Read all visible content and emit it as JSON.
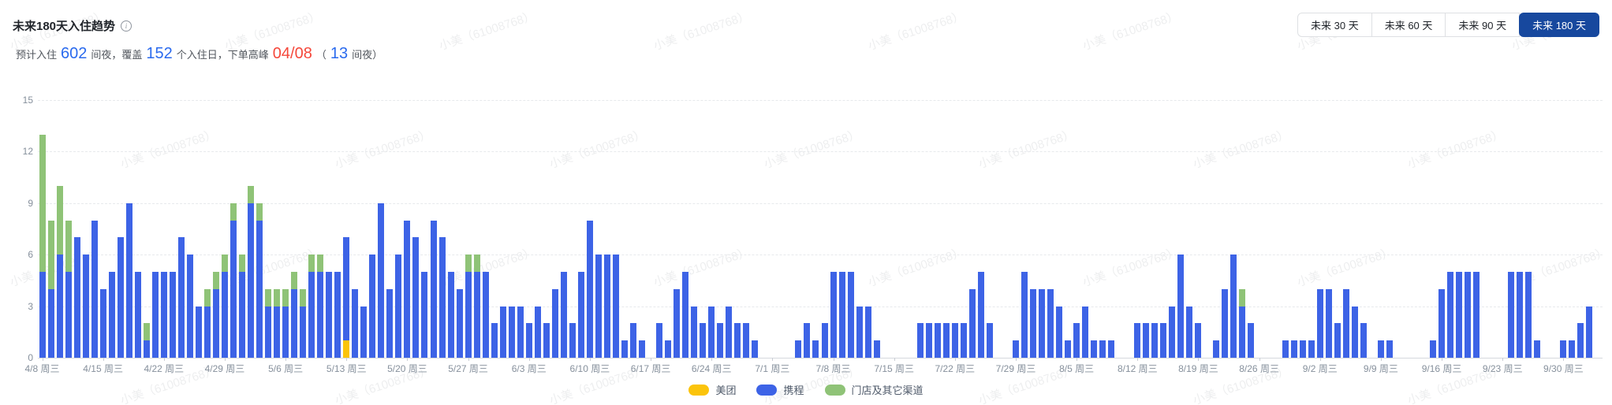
{
  "header": {
    "title": "未来180天入住趋势",
    "summary": {
      "prefix": "预计入住",
      "nights": "602",
      "mid1": "间夜，覆盖",
      "cover_days": "152",
      "mid2": "个入住日，下单高峰",
      "peak_date": "04/08",
      "paren_open": "（",
      "peak_nights": "13",
      "paren_close": "间夜）"
    },
    "range_tabs": [
      {
        "label": "未来 30 天",
        "active": false
      },
      {
        "label": "未来 60 天",
        "active": false
      },
      {
        "label": "未来 90 天",
        "active": false
      },
      {
        "label": "未来 180 天",
        "active": true
      }
    ]
  },
  "watermark": {
    "text": "小美（61008768）"
  },
  "colors": {
    "accent_blue": "#2a6aee",
    "alert_red": "#f5483b",
    "tab_active_bg": "#17489e",
    "meituan_yellow": "#fbc40b",
    "ctrip_blue": "#3d63e6",
    "other_green": "#8fc377",
    "axis_text": "#86909c",
    "grid_line": "#e7e9ec"
  },
  "chart_data": {
    "type": "bar",
    "stacked": true,
    "x_count": 180,
    "tick_every": 7,
    "tick_labels": [
      "4/8 周三",
      "4/15 周三",
      "4/22 周三",
      "4/29 周三",
      "5/6 周三",
      "5/13 周三",
      "5/20 周三",
      "5/27 周三",
      "6/3 周三",
      "6/10 周三",
      "6/17 周三",
      "6/24 周三",
      "7/1 周三",
      "7/8 周三",
      "7/15 周三",
      "7/22 周三",
      "7/29 周三",
      "8/5 周三",
      "8/12 周三",
      "8/19 周三",
      "8/26 周三",
      "9/2 周三",
      "9/9 周三",
      "9/16 周三",
      "9/23 周三",
      "9/30 周三"
    ],
    "ylim": [
      0,
      15
    ],
    "yticks": [
      0,
      3,
      6,
      9,
      12,
      15
    ],
    "legend_position": "bottom-center",
    "grid": "dashed-horizontal",
    "series": [
      {
        "name": "美团",
        "color": "#fbc40b",
        "values": [
          0,
          0,
          0,
          0,
          0,
          0,
          0,
          0,
          0,
          0,
          0,
          0,
          0,
          0,
          0,
          0,
          0,
          0,
          0,
          0,
          0,
          0,
          0,
          0,
          0,
          0,
          0,
          0,
          0,
          0,
          0,
          0,
          0,
          0,
          0,
          1,
          0,
          0,
          0,
          0,
          0,
          0,
          0,
          0,
          0,
          0,
          0,
          0,
          0,
          0,
          0,
          0,
          0,
          0,
          0,
          0,
          0,
          0,
          0,
          0,
          0,
          0,
          0,
          0,
          0,
          0,
          0,
          0,
          0,
          0,
          0,
          0,
          0,
          0,
          0,
          0,
          0,
          0,
          0,
          0,
          0,
          0,
          0,
          0,
          0,
          0,
          0,
          0,
          0,
          0,
          0,
          0,
          0,
          0,
          0,
          0,
          0,
          0,
          0,
          0,
          0,
          0,
          0,
          0,
          0,
          0,
          0,
          0,
          0,
          0,
          0,
          0,
          0,
          0,
          0,
          0,
          0,
          0,
          0,
          0,
          0,
          0,
          0,
          0,
          0,
          0,
          0,
          0,
          0,
          0,
          0,
          0,
          0,
          0,
          0,
          0,
          0,
          0,
          0,
          0,
          0,
          0,
          0,
          0,
          0,
          0,
          0,
          0,
          0,
          0,
          0,
          0,
          0,
          0,
          0,
          0,
          0,
          0,
          0,
          0,
          0,
          0,
          0,
          0,
          0,
          0,
          0,
          0,
          0,
          0,
          0,
          0,
          0,
          0,
          0,
          0,
          0,
          0,
          0,
          0
        ]
      },
      {
        "name": "携程",
        "color": "#3d63e6",
        "values": [
          5,
          4,
          6,
          5,
          7,
          6,
          8,
          4,
          5,
          7,
          9,
          5,
          1,
          5,
          5,
          5,
          7,
          6,
          3,
          3,
          4,
          5,
          8,
          5,
          9,
          8,
          3,
          3,
          3,
          4,
          3,
          5,
          5,
          5,
          5,
          6,
          4,
          3,
          6,
          9,
          4,
          6,
          8,
          7,
          5,
          8,
          7,
          5,
          4,
          5,
          5,
          5,
          2,
          3,
          3,
          3,
          2,
          3,
          2,
          4,
          5,
          2,
          5,
          8,
          6,
          6,
          6,
          1,
          2,
          1,
          0,
          2,
          1,
          4,
          5,
          3,
          2,
          3,
          2,
          3,
          2,
          2,
          1,
          0,
          0,
          0,
          0,
          1,
          2,
          1,
          2,
          5,
          5,
          5,
          3,
          3,
          1,
          0,
          0,
          0,
          0,
          2,
          2,
          2,
          2,
          2,
          2,
          4,
          5,
          2,
          0,
          0,
          1,
          5,
          4,
          4,
          4,
          3,
          1,
          2,
          3,
          1,
          1,
          1,
          0,
          0,
          2,
          2,
          2,
          2,
          3,
          6,
          3,
          2,
          0,
          1,
          4,
          6,
          3,
          2,
          0,
          0,
          0,
          1,
          1,
          1,
          1,
          4,
          4,
          2,
          4,
          3,
          2,
          0,
          1,
          1,
          0,
          0,
          0,
          0,
          1,
          4,
          5,
          5,
          5,
          5,
          0,
          0,
          0,
          5,
          5,
          5,
          1,
          0,
          0,
          1,
          1,
          2,
          3,
          0
        ]
      },
      {
        "name": "门店及其它渠道",
        "color": "#8fc377",
        "values": [
          8,
          4,
          4,
          3,
          0,
          0,
          0,
          0,
          0,
          0,
          0,
          0,
          1,
          0,
          0,
          0,
          0,
          0,
          0,
          1,
          1,
          1,
          1,
          1,
          1,
          1,
          1,
          1,
          1,
          1,
          1,
          1,
          1,
          0,
          0,
          0,
          0,
          0,
          0,
          0,
          0,
          0,
          0,
          0,
          0,
          0,
          0,
          0,
          0,
          1,
          1,
          0,
          0,
          0,
          0,
          0,
          0,
          0,
          0,
          0,
          0,
          0,
          0,
          0,
          0,
          0,
          0,
          0,
          0,
          0,
          0,
          0,
          0,
          0,
          0,
          0,
          0,
          0,
          0,
          0,
          0,
          0,
          0,
          0,
          0,
          0,
          0,
          0,
          0,
          0,
          0,
          0,
          0,
          0,
          0,
          0,
          0,
          0,
          0,
          0,
          0,
          0,
          0,
          0,
          0,
          0,
          0,
          0,
          0,
          0,
          0,
          0,
          0,
          0,
          0,
          0,
          0,
          0,
          0,
          0,
          0,
          0,
          0,
          0,
          0,
          0,
          0,
          0,
          0,
          0,
          0,
          0,
          0,
          0,
          0,
          0,
          0,
          0,
          1,
          0,
          0,
          0,
          0,
          0,
          0,
          0,
          0,
          0,
          0,
          0,
          0,
          0,
          0,
          0,
          0,
          0,
          0,
          0,
          0,
          0,
          0,
          0,
          0,
          0,
          0,
          0,
          0,
          0,
          0,
          0,
          0,
          0,
          0,
          0,
          0,
          0,
          0,
          0,
          0,
          0
        ]
      }
    ]
  }
}
